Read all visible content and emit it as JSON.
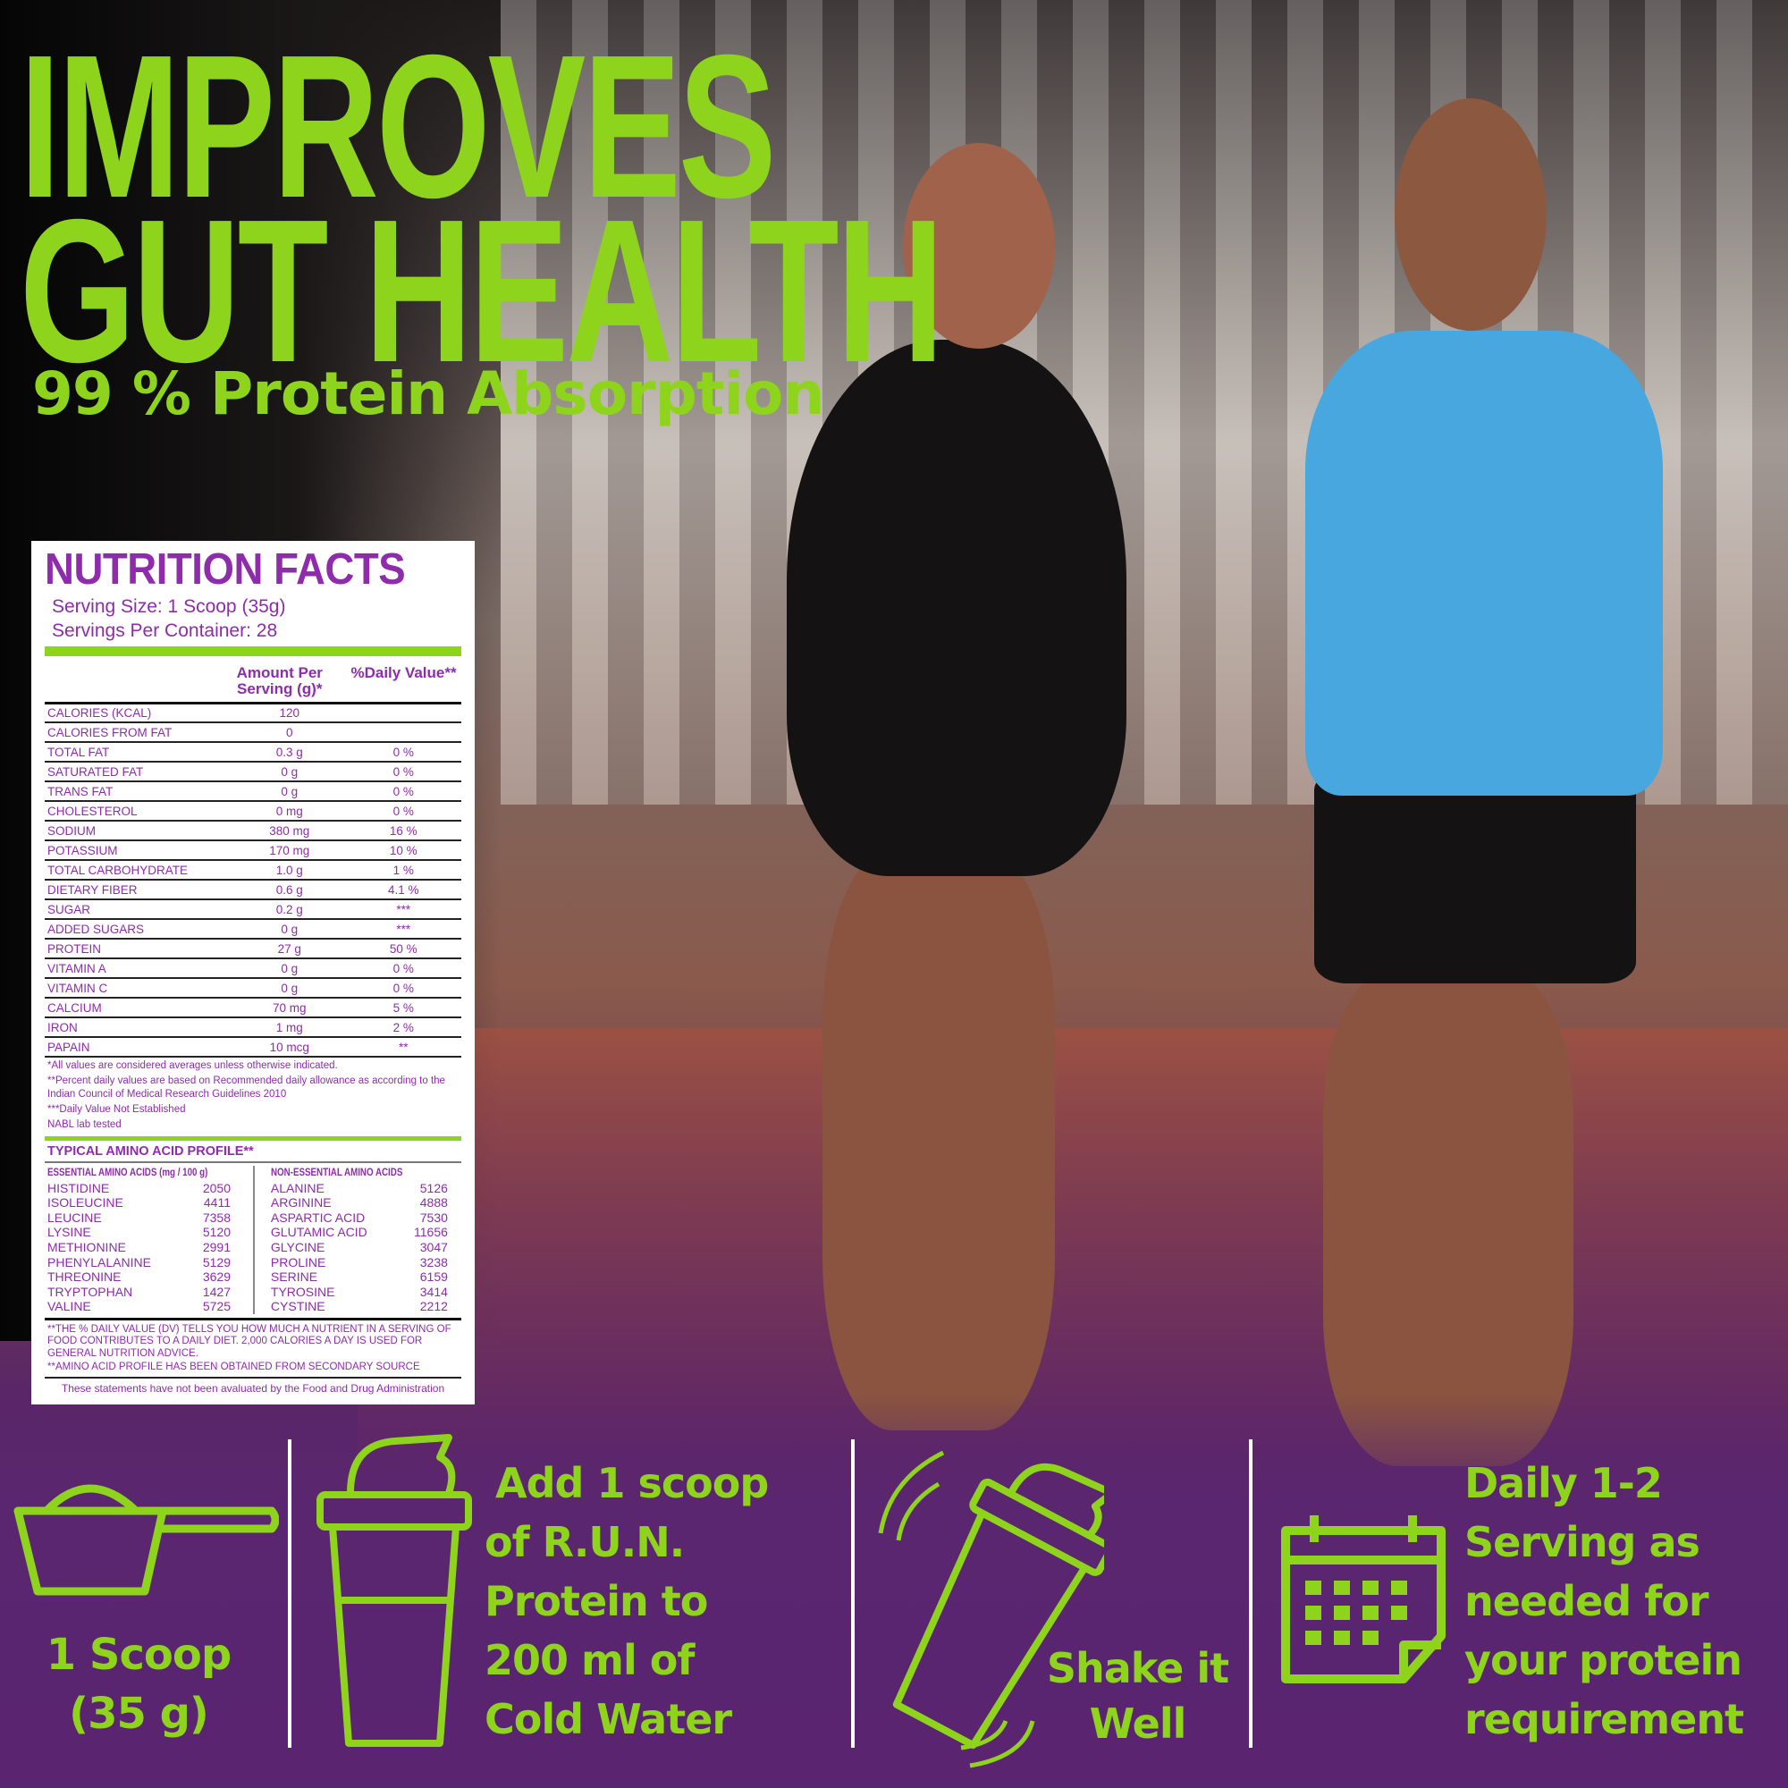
{
  "headline": {
    "line1": "IMPROVES",
    "line2": "GUT HEALTH",
    "subtitle": "99 % Protein Absorption"
  },
  "colors": {
    "accent_green": "#8fd41c",
    "label_purple": "#8e2cab",
    "band_purple": "#5a2470"
  },
  "nutrition": {
    "title": "NUTRITION FACTS",
    "serving_size": "Serving Size:  1 Scoop (35g)",
    "servings_per_container": "Servings Per Container: 28",
    "col_amount": "Amount Per Serving (g)*",
    "col_daily": "%Daily Value**",
    "rows": [
      {
        "name": "CALORIES (KCAL)",
        "amount": "120",
        "dv": ""
      },
      {
        "name": "CALORIES FROM FAT",
        "amount": "0",
        "dv": ""
      },
      {
        "name": "TOTAL FAT",
        "amount": "0.3 g",
        "dv": "0 %"
      },
      {
        "name": "SATURATED FAT",
        "amount": "0 g",
        "dv": "0 %"
      },
      {
        "name": "TRANS FAT",
        "amount": "0 g",
        "dv": "0 %"
      },
      {
        "name": "CHOLESTEROL",
        "amount": "0 mg",
        "dv": "0 %"
      },
      {
        "name": "SODIUM",
        "amount": "380 mg",
        "dv": "16 %"
      },
      {
        "name": "POTASSIUM",
        "amount": "170 mg",
        "dv": "10 %"
      },
      {
        "name": "TOTAL CARBOHYDRATE",
        "amount": "1.0 g",
        "dv": "1 %"
      },
      {
        "name": "DIETARY FIBER",
        "amount": "0.6 g",
        "dv": "4.1 %"
      },
      {
        "name": "SUGAR",
        "amount": "0.2 g",
        "dv": "***"
      },
      {
        "name": "ADDED SUGARS",
        "amount": "0 g",
        "dv": "***"
      },
      {
        "name": "PROTEIN",
        "amount": "27 g",
        "dv": "50 %"
      },
      {
        "name": "VITAMIN A",
        "amount": "0 g",
        "dv": "0 %"
      },
      {
        "name": "VITAMIN C",
        "amount": "0 g",
        "dv": "0 %"
      },
      {
        "name": "CALCIUM",
        "amount": "70 mg",
        "dv": "5 %"
      },
      {
        "name": "IRON",
        "amount": "1 mg",
        "dv": "2 %"
      },
      {
        "name": "PAPAIN",
        "amount": "10 mcg",
        "dv": "**"
      }
    ],
    "footnotes": [
      "*All values are considered averages unless otherwise indicated.",
      "**Percent daily values are based on Recommended daily allowance as according to the Indian Council of Medical Research Guidelines 2010",
      "***Daily Value Not Established",
      "NABL lab tested"
    ],
    "amino": {
      "title": "TYPICAL AMINO ACID PROFILE**",
      "essential_title": "ESSENTIAL AMINO ACIDS (mg / 100 g)",
      "nonessential_title": "NON-ESSENTIAL AMINO ACIDS",
      "essential": [
        [
          "HISTIDINE",
          "2050"
        ],
        [
          "ISOLEUCINE",
          "4411"
        ],
        [
          "LEUCINE",
          "7358"
        ],
        [
          "LYSINE",
          "5120"
        ],
        [
          "METHIONINE",
          "2991"
        ],
        [
          "PHENYLALANINE",
          "5129"
        ],
        [
          "THREONINE",
          "3629"
        ],
        [
          "TRYPTOPHAN",
          "1427"
        ],
        [
          "VALINE",
          "5725"
        ]
      ],
      "nonessential": [
        [
          "ALANINE",
          "5126"
        ],
        [
          "ARGININE",
          "4888"
        ],
        [
          "ASPARTIC ACID",
          "7530"
        ],
        [
          "GLUTAMIC ACID",
          "11656"
        ],
        [
          "GLYCINE",
          "3047"
        ],
        [
          "PROLINE",
          "3238"
        ],
        [
          "SERINE",
          "6159"
        ],
        [
          "TYROSINE",
          "3414"
        ],
        [
          "CYSTINE",
          "2212"
        ]
      ]
    },
    "disclaimer1": "**THE % DAILY VALUE (DV) TELLS YOU HOW MUCH A NUTRIENT IN A SERVING OF FOOD CONTRIBUTES TO A DAILY DIET. 2,000 CALORIES A DAY IS USED FOR GENERAL NUTRITION ADVICE.",
    "disclaimer2": "**AMINO ACID PROFILE HAS BEEN OBTAINED FROM SECONDARY SOURCE",
    "fda": "These statements have not been avaluated by the Food and Drug Administration"
  },
  "steps": [
    {
      "icon": "scoop-icon",
      "lines": [
        "1 Scoop",
        "(35 g)"
      ]
    },
    {
      "icon": "shaker-bottle-icon",
      "lines": [
        "Add 1 scoop",
        "of R.U.N.",
        "Protein to",
        "200 ml of",
        "Cold Water"
      ]
    },
    {
      "icon": "shaking-bottle-icon",
      "lines": [
        "Shake it",
        "Well"
      ]
    },
    {
      "icon": "calendar-icon",
      "lines": [
        "Daily 1-2",
        "Serving as",
        "needed for",
        "your protein",
        "requirement"
      ]
    }
  ]
}
